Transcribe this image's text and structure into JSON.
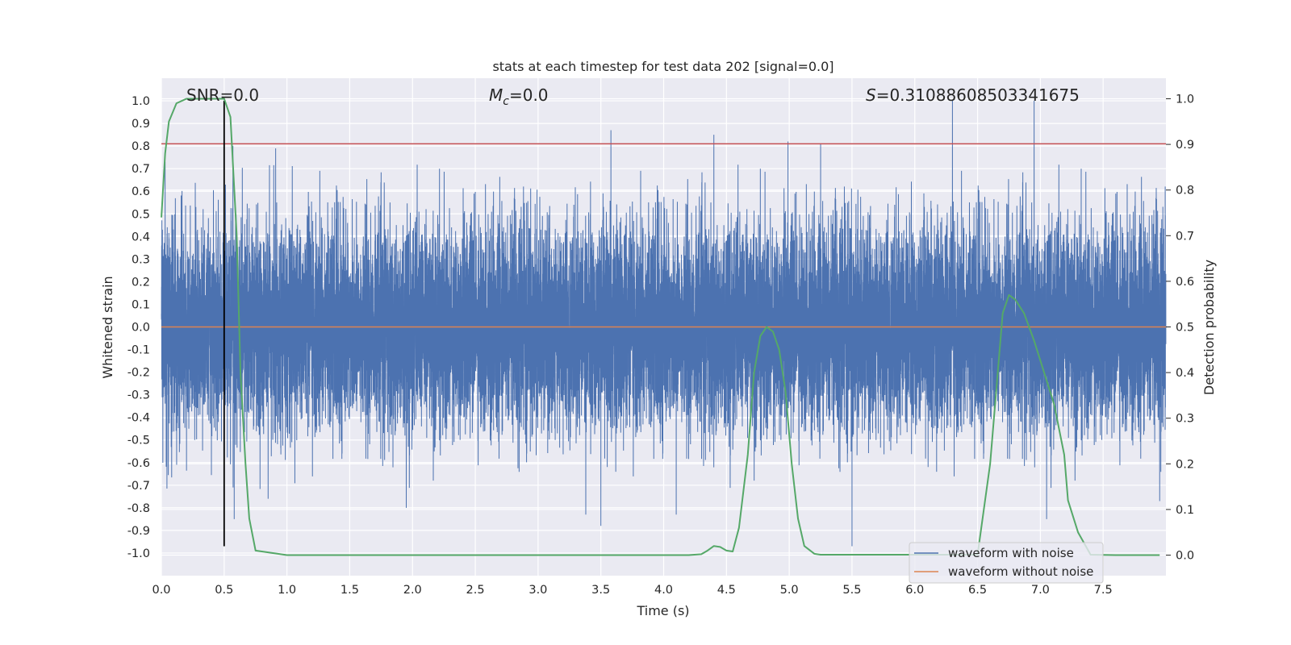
{
  "chart_data": {
    "type": "line",
    "title": "stats at each timestep for test data 202 [signal=0.0]",
    "xlabel": "Time (s)",
    "ylabel": "Whitened strain",
    "y2label": "Detection probability",
    "xlim": [
      0.0,
      8.0
    ],
    "ylim": [
      -1.1,
      1.1
    ],
    "y2lim": [
      -0.045,
      1.045
    ],
    "x_ticks": [
      0.0,
      0.5,
      1.0,
      1.5,
      2.0,
      2.5,
      3.0,
      3.5,
      4.0,
      4.5,
      5.0,
      5.5,
      6.0,
      6.5,
      7.0,
      7.5
    ],
    "x_tick_labels": [
      "0.0",
      "0.5",
      "1.0",
      "1.5",
      "2.0",
      "2.5",
      "3.0",
      "3.5",
      "4.0",
      "4.5",
      "5.0",
      "5.5",
      "6.0",
      "6.5",
      "7.0",
      "7.5"
    ],
    "y_ticks": [
      1.0,
      0.9,
      0.8,
      0.7,
      0.6,
      0.5,
      0.4,
      0.3,
      0.2,
      0.1,
      0.0,
      -0.1,
      -0.2,
      -0.3,
      -0.4,
      -0.5,
      -0.6,
      -0.7,
      -0.8,
      -0.9,
      -1.0
    ],
    "y_tick_labels": [
      "1.0",
      "0.9",
      "0.8",
      "0.7",
      "0.6",
      "0.5",
      "0.4",
      "0.3",
      "0.2",
      "0.1",
      "0.0",
      "-0.1",
      "-0.2",
      "-0.3",
      "-0.4",
      "-0.5",
      "-0.6",
      "-0.7",
      "-0.8",
      "-0.9",
      "-1.0"
    ],
    "y2_ticks": [
      1.0,
      0.9,
      0.8,
      0.7,
      0.6,
      0.5,
      0.4,
      0.3,
      0.2,
      0.1,
      0.0
    ],
    "y2_tick_labels": [
      "1.0",
      "0.9",
      "0.8",
      "0.7",
      "0.6",
      "0.5",
      "0.4",
      "0.3",
      "0.2",
      "0.1",
      "0.0"
    ],
    "annotations": {
      "snr": "SNR=0.0",
      "mc_symbol": "M",
      "mc_sub": "c",
      "mc_value": "=0.0",
      "s_symbol": "S",
      "s_value": "=0.31088608503341675"
    },
    "legend": {
      "position": "lower-right",
      "entries": [
        "waveform with noise",
        "waveform without noise"
      ]
    },
    "series": [
      {
        "name": "waveform with noise",
        "axis": "left",
        "color": "#4c72b0",
        "description": "noisy whitened strain, dense noise between approx -0.95 and 1.0",
        "sample_rate": 2048,
        "duration": 8.0,
        "noise_sigma": 0.22,
        "spikes": [
          {
            "x": 0.03,
            "y": 0.73
          },
          {
            "x": 0.5,
            "y": 0.7
          },
          {
            "x": 0.57,
            "y": 0.8
          },
          {
            "x": 0.58,
            "y": -0.85
          },
          {
            "x": 0.91,
            "y": 0.79
          },
          {
            "x": 0.85,
            "y": -0.76
          },
          {
            "x": 1.95,
            "y": -0.8
          },
          {
            "x": 3.38,
            "y": 0.82
          },
          {
            "x": 3.38,
            "y": -0.83
          },
          {
            "x": 3.58,
            "y": 0.87
          },
          {
            "x": 3.5,
            "y": -0.88
          },
          {
            "x": 4.4,
            "y": 0.85
          },
          {
            "x": 4.1,
            "y": -0.83
          },
          {
            "x": 4.99,
            "y": 0.82
          },
          {
            "x": 5.25,
            "y": 0.81
          },
          {
            "x": 5.5,
            "y": -0.97
          },
          {
            "x": 6.3,
            "y": 1.0
          },
          {
            "x": 6.95,
            "y": 1.0
          },
          {
            "x": 7.05,
            "y": -0.85
          },
          {
            "x": 7.95,
            "y": -0.77
          }
        ]
      },
      {
        "name": "waveform without noise",
        "axis": "left",
        "color": "#dd8452",
        "x": [
          0.0,
          8.0
        ],
        "y": [
          0.0,
          0.0
        ]
      },
      {
        "name": "detection probability",
        "axis": "right",
        "color": "#55a868",
        "x": [
          0.0,
          0.03,
          0.06,
          0.12,
          0.2,
          0.3,
          0.4,
          0.5,
          0.55,
          0.6,
          0.63,
          0.67,
          0.7,
          0.75,
          1.0,
          2.0,
          3.0,
          4.0,
          4.2,
          4.3,
          4.35,
          4.4,
          4.45,
          4.5,
          4.55,
          4.6,
          4.67,
          4.72,
          4.77,
          4.82,
          4.87,
          4.92,
          4.97,
          5.02,
          5.07,
          5.12,
          5.2,
          5.25,
          5.5,
          6.0,
          6.5,
          6.6,
          6.7,
          6.75,
          6.8,
          6.87,
          6.95,
          7.03,
          7.11,
          7.19,
          7.22,
          7.3,
          7.4,
          7.6,
          7.95
        ],
        "y": [
          0.74,
          0.88,
          0.95,
          0.99,
          1.0,
          1.0,
          1.0,
          1.0,
          0.96,
          0.7,
          0.4,
          0.2,
          0.08,
          0.01,
          0.0,
          0.0,
          0.0,
          0.0,
          0.0,
          0.002,
          0.01,
          0.02,
          0.018,
          0.01,
          0.008,
          0.06,
          0.22,
          0.4,
          0.48,
          0.5,
          0.49,
          0.45,
          0.36,
          0.2,
          0.08,
          0.02,
          0.003,
          0.001,
          0.001,
          0.001,
          0.001,
          0.2,
          0.53,
          0.57,
          0.56,
          0.53,
          0.47,
          0.4,
          0.33,
          0.22,
          0.12,
          0.05,
          0.001,
          0.0,
          0.0
        ]
      },
      {
        "name": "threshold",
        "axis": "left",
        "color": "#c44e52",
        "x": [
          0.0,
          8.0
        ],
        "y": [
          0.81,
          0.81
        ]
      },
      {
        "name": "event marker",
        "axis": "left",
        "color": "#000000",
        "x": [
          0.5,
          0.5
        ],
        "y": [
          -0.97,
          1.0
        ]
      }
    ]
  }
}
